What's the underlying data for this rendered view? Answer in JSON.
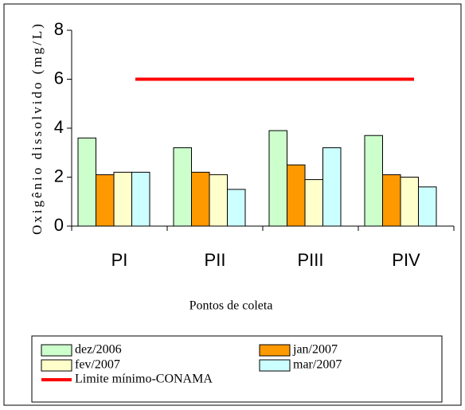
{
  "chart_data": {
    "type": "bar",
    "y_axis_label": "Oxigênio dissolvido (mg/L)",
    "x_axis_label": "Pontos de coleta",
    "categories": [
      "PI",
      "PII",
      "PIII",
      "PIV"
    ],
    "series": [
      {
        "name": "dez/2006",
        "color": "#ccffcc",
        "values": [
          3.6,
          3.2,
          3.9,
          3.7
        ]
      },
      {
        "name": "jan/2007",
        "color": "#ff9900",
        "values": [
          2.1,
          2.2,
          2.5,
          2.1
        ]
      },
      {
        "name": "fev/2007",
        "color": "#ffffcc",
        "values": [
          2.2,
          2.1,
          1.9,
          2.0
        ]
      },
      {
        "name": "mar/2007",
        "color": "#ccffff",
        "values": [
          2.2,
          1.5,
          3.2,
          1.6
        ]
      },
      {
        "name": "Limite mínimo-CONAMA",
        "color": "#ff0000",
        "type": "line",
        "values": [
          6,
          6,
          6,
          6
        ]
      }
    ],
    "ylim": [
      0,
      8
    ],
    "yticks": [
      0,
      2,
      4,
      6,
      8
    ]
  }
}
